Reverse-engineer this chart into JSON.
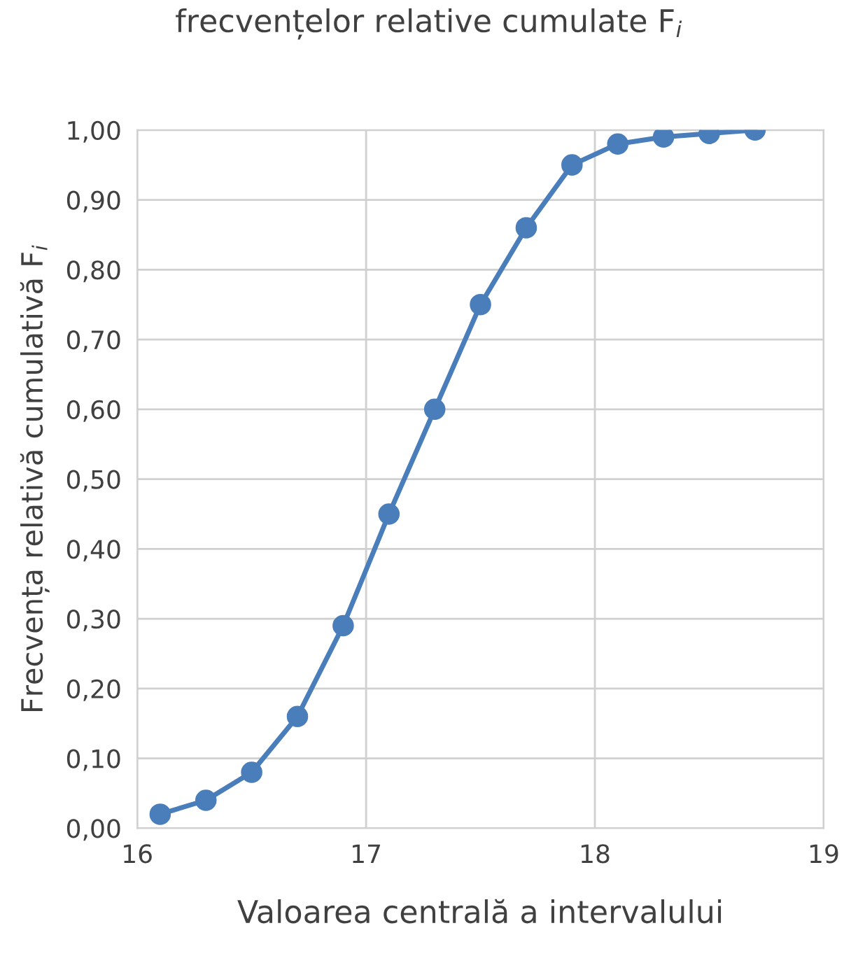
{
  "chart_data": {
    "type": "line",
    "title": "frecvențelor relative cumulate F$_{i}$",
    "xlabel": "Valoarea centrală a intervalului",
    "ylabel": "Frecvența relativă cumulativă F$_{i}$",
    "x": [
      16.1,
      16.3,
      16.5,
      16.7,
      16.9,
      17.1,
      17.3,
      17.5,
      17.7,
      17.9,
      18.1,
      18.3,
      18.5,
      18.7
    ],
    "series": [
      {
        "color": "#4a7ebb",
        "values": [
          0.02,
          0.04,
          0.08,
          0.16,
          0.29,
          0.45,
          0.6,
          0.75,
          0.86,
          0.95,
          0.98,
          0.99,
          0.995,
          1.0
        ]
      }
    ],
    "xlim": [
      16,
      19
    ],
    "xticks": [
      16,
      17,
      18,
      19
    ],
    "ylim": [
      0,
      1
    ],
    "yticks": [
      {
        "value": 0,
        "label": "0,00"
      },
      {
        "value": 0.1,
        "label": "0,10"
      },
      {
        "value": 0.2,
        "label": "0,20"
      },
      {
        "value": 0.3,
        "label": "0,30"
      },
      {
        "value": 0.4,
        "label": "0,40"
      },
      {
        "value": 0.5,
        "label": "0,50"
      },
      {
        "value": 0.6,
        "label": "0,60"
      },
      {
        "value": 0.7,
        "label": "0,70"
      },
      {
        "value": 0.8,
        "label": "0,80"
      },
      {
        "value": 0.9,
        "label": "0,90"
      },
      {
        "value": 1.0,
        "label": "1,00"
      }
    ],
    "grid": true,
    "marker": "circle",
    "line_style": "solid"
  }
}
